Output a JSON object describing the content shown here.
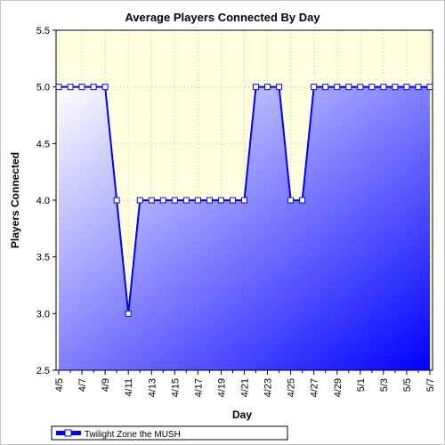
{
  "chart_data": {
    "type": "area",
    "title": "Average Players Connected By Day",
    "xlabel": "Day",
    "ylabel": "Players Connected",
    "x": [
      "4/5",
      "4/6",
      "4/7",
      "4/8",
      "4/9",
      "4/10",
      "4/11",
      "4/12",
      "4/13",
      "4/14",
      "4/15",
      "4/16",
      "4/17",
      "4/18",
      "4/19",
      "4/20",
      "4/21",
      "4/22",
      "4/23",
      "4/24",
      "4/25",
      "4/26",
      "4/27",
      "4/28",
      "4/29",
      "4/30",
      "5/1",
      "5/2",
      "5/3",
      "5/4",
      "5/5",
      "5/6",
      "5/7"
    ],
    "x_tick_labels": [
      "4/5",
      "4/7",
      "4/9",
      "4/11",
      "4/13",
      "4/15",
      "4/17",
      "4/19",
      "4/21",
      "4/23",
      "4/25",
      "4/27",
      "4/29",
      "5/1",
      "5/3",
      "5/5",
      "5/7"
    ],
    "series": [
      {
        "name": "Twilight Zone the MUSH",
        "values": [
          5,
          5,
          5,
          5,
          5,
          4,
          3,
          4,
          4,
          4,
          4,
          4,
          4,
          4,
          4,
          4,
          4,
          5,
          5,
          5,
          4,
          4,
          5,
          5,
          5,
          5,
          5,
          5,
          5,
          5,
          5,
          5,
          5
        ]
      }
    ],
    "ylim": [
      2.5,
      5.5
    ],
    "y_ticks": [
      "2.5",
      "3.0",
      "3.5",
      "4.0",
      "4.5",
      "5.0",
      "5.5"
    ],
    "grid": true,
    "legend_position": "bottom-left",
    "colors": {
      "plot_background": "#ffffe0",
      "line": "#0000ff",
      "fill_start": "#ffffff",
      "fill_end": "#0000ff",
      "marker_fill": "#ffffff",
      "marker_stroke": "#0000ff",
      "grid": "#c8c8a0"
    }
  }
}
